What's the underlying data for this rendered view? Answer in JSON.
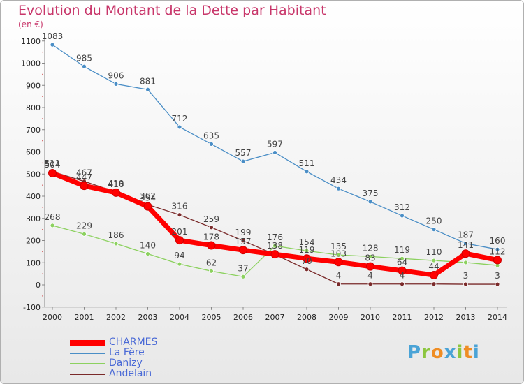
{
  "title": "Evolution du Montant de la Dette par Habitant",
  "unit_label": "(en €)",
  "logo_text": "Proxiti",
  "chart_data": {
    "type": "line",
    "title": "Evolution du Montant de la Dette par Habitant",
    "ylabel": "(en €)",
    "xlabel": "",
    "ylim": [
      -100,
      1100
    ],
    "yticks": [
      "-100",
      "0",
      "100",
      "200",
      "300",
      "400",
      "500",
      "600",
      "700",
      "800",
      "900",
      "1000",
      "1100"
    ],
    "categories": [
      "2000",
      "2001",
      "2002",
      "2003",
      "2004",
      "2005",
      "2006",
      "2007",
      "2008",
      "2009",
      "2010",
      "2011",
      "2012",
      "2013",
      "2014"
    ],
    "grid": false,
    "legend_position": "bottom-left",
    "series": [
      {
        "name": "CHARMES",
        "color": "#ff0000",
        "values": [
          504,
          447,
          416,
          354,
          201,
          178,
          157,
          138,
          119,
          103,
          83,
          64,
          44,
          141,
          112
        ],
        "labels": [
          "504",
          "447",
          "416",
          "354",
          "201",
          "178",
          "157",
          "138",
          "119",
          "103",
          "83",
          "64",
          "44",
          "141",
          "112"
        ]
      },
      {
        "name": "La Fère",
        "color": "#4a8ec6",
        "values": [
          1083,
          985,
          906,
          881,
          712,
          635,
          557,
          597,
          511,
          434,
          375,
          312,
          250,
          187,
          160
        ],
        "labels": [
          "1083",
          "985",
          "906",
          "881",
          "712",
          "635",
          "557",
          "597",
          "511",
          "434",
          "375",
          "312",
          "250",
          "187",
          "160"
        ]
      },
      {
        "name": "Danizy",
        "color": "#8cd15f",
        "values": [
          268,
          229,
          186,
          140,
          94,
          62,
          37,
          176,
          154,
          135,
          128,
          119,
          110,
          101,
          88
        ],
        "labels": [
          "268",
          "229",
          "186",
          "140",
          "94",
          "62",
          "37",
          "176",
          "154",
          "135",
          "128",
          "119",
          "110",
          "",
          ""
        ]
      },
      {
        "name": "Andelain",
        "color": "#7a2a2a",
        "values": [
          511,
          467,
          419,
          362,
          316,
          259,
          199,
          137,
          70,
          4,
          4,
          4,
          4,
          3,
          3
        ],
        "labels": [
          "511",
          "467",
          "419",
          "362",
          "316",
          "259",
          "199",
          "",
          "70",
          "4",
          "4",
          "4",
          "",
          "3",
          "3"
        ]
      }
    ]
  }
}
